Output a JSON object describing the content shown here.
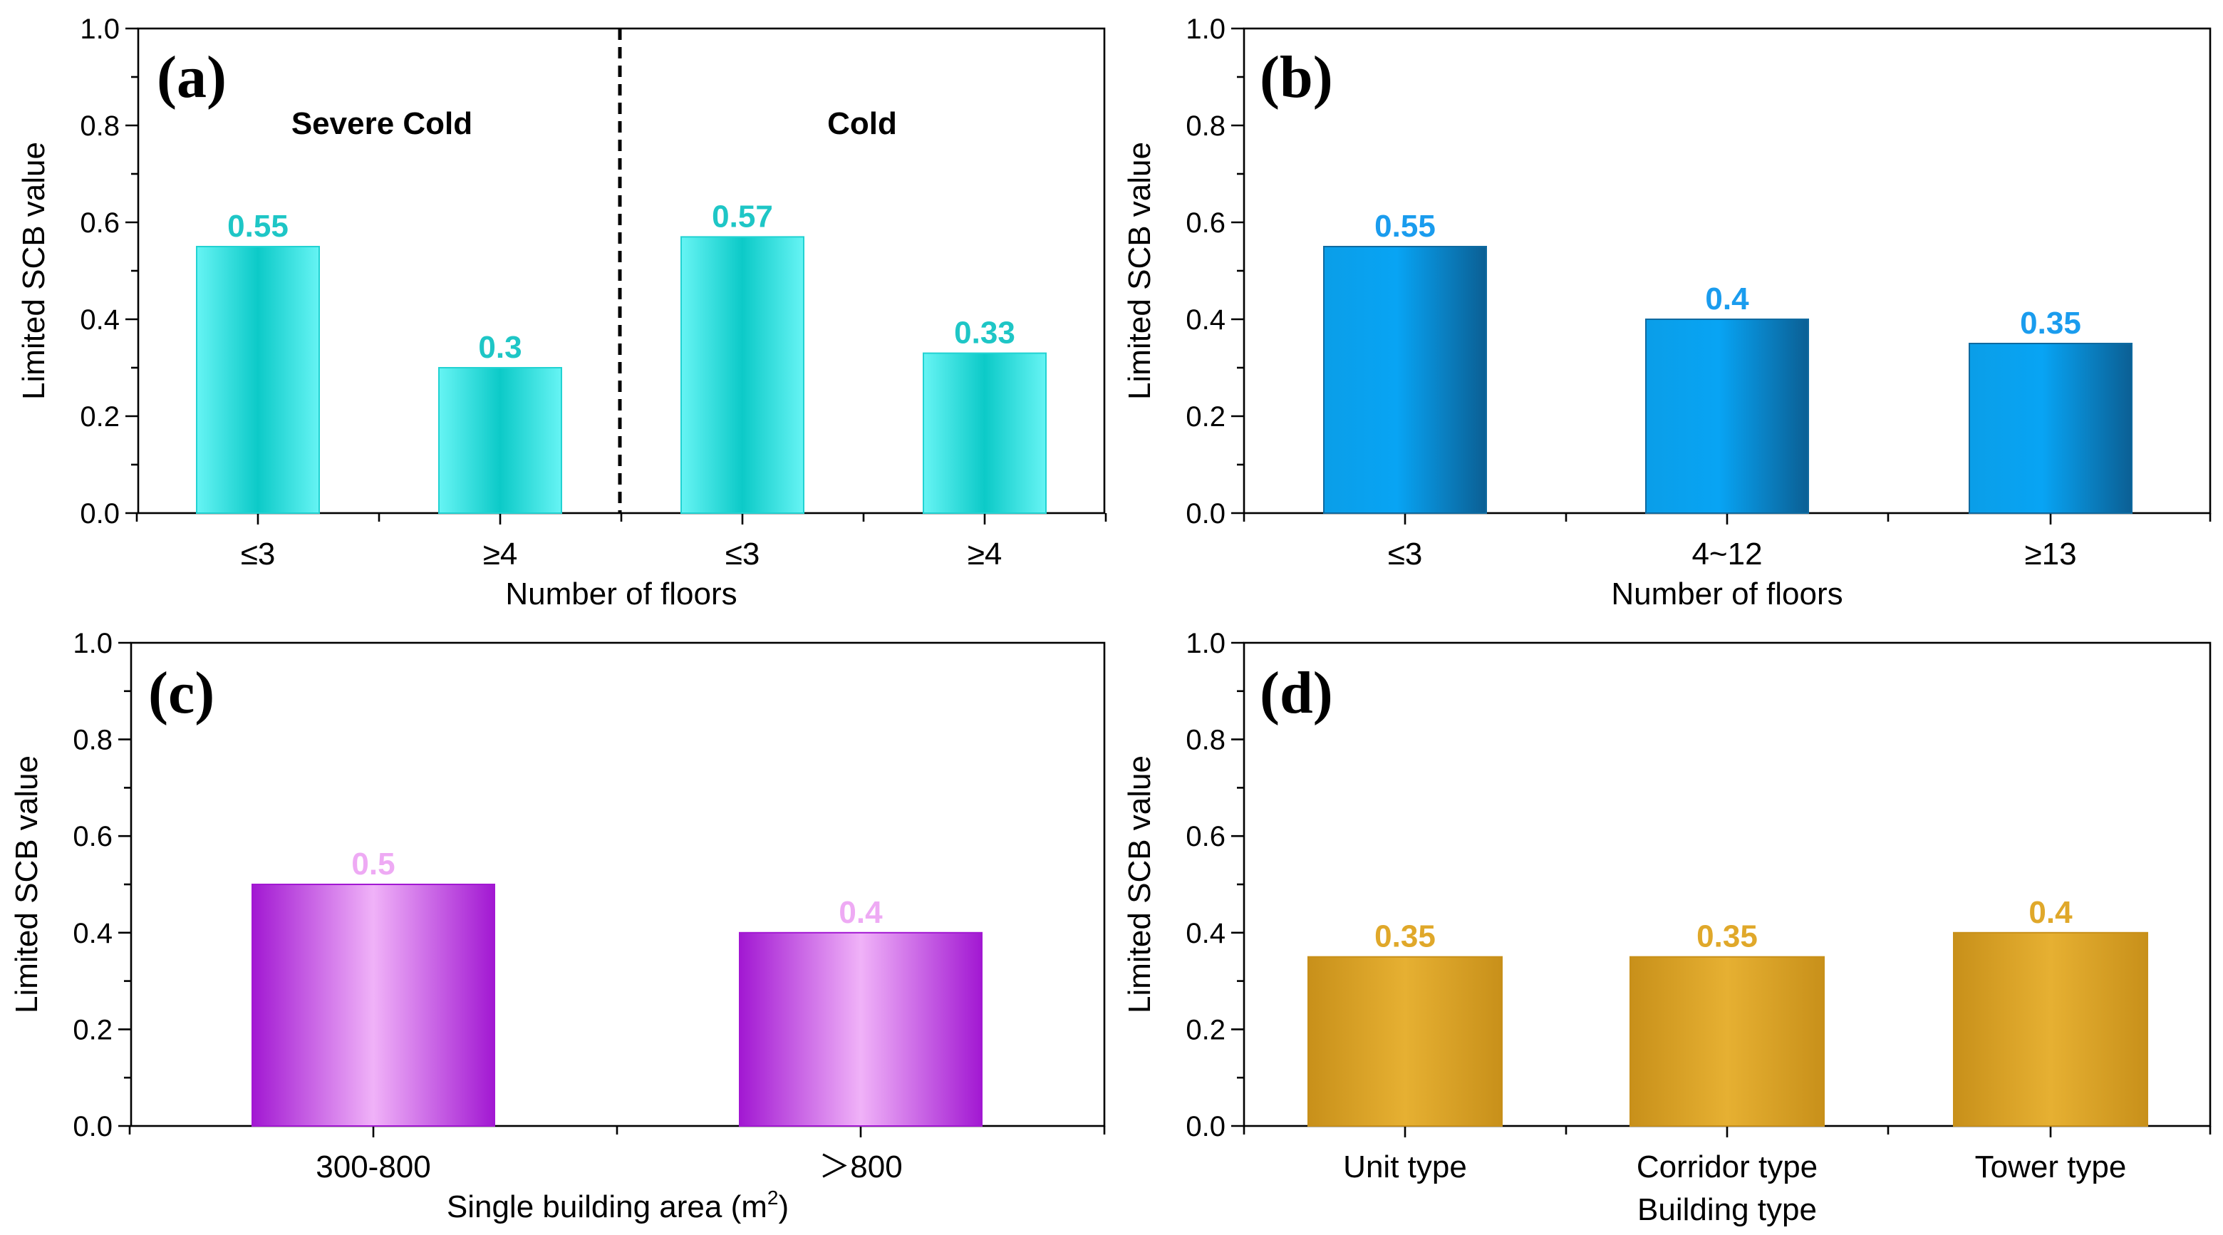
{
  "chart_data": [
    {
      "type": "bar",
      "panel_label": "(a)",
      "categories": [
        "≤3",
        "≥4",
        "≤3",
        "≥4"
      ],
      "values": [
        0.55,
        0.3,
        0.57,
        0.33
      ],
      "data_labels": [
        "0.55",
        "0.3",
        "0.57",
        "0.33"
      ],
      "xlabel": "Number of floors",
      "ylabel": "Limited SCB value",
      "ylim": [
        0,
        1
      ],
      "yticks": [
        "0.0",
        "0.2",
        "0.4",
        "0.6",
        "0.8",
        "1.0"
      ],
      "groups": [
        "Severe Cold",
        "Cold"
      ],
      "colors": {
        "edge": "#66f4f4",
        "center": "#0ccac8",
        "label": "#1ec6c6",
        "stroke": "#22d2d2"
      }
    },
    {
      "type": "bar",
      "panel_label": "(b)",
      "categories": [
        "≤3",
        "4~12",
        "≥13"
      ],
      "values": [
        0.55,
        0.4,
        0.35
      ],
      "data_labels": [
        "0.55",
        "0.4",
        "0.35"
      ],
      "xlabel": "Number of floors",
      "ylabel": "Limited SCB value",
      "ylim": [
        0,
        1
      ],
      "yticks": [
        "0.0",
        "0.2",
        "0.4",
        "0.6",
        "0.8",
        "1.0"
      ],
      "colors": {
        "edge": "#0a6aa6",
        "center": "#05a2f2",
        "label": "#1a9cee",
        "stroke": "#0f6aa0"
      }
    },
    {
      "type": "bar",
      "panel_label": "(c)",
      "categories": [
        "300-800",
        "＞800"
      ],
      "values": [
        0.5,
        0.4
      ],
      "data_labels": [
        "0.5",
        "0.4"
      ],
      "xlabel": "Single building area (m",
      "xlabel_sup": "2",
      "xlabel_end": ")",
      "ylabel": "Limited SCB value",
      "ylim": [
        0,
        1
      ],
      "yticks": [
        "0.0",
        "0.2",
        "0.4",
        "0.6",
        "0.8",
        "1.0"
      ],
      "colors": {
        "edge": "#a218d2",
        "center": "#f0b2f8",
        "label": "#eeaaf4",
        "stroke": "#a218d2"
      }
    },
    {
      "type": "bar",
      "panel_label": "(d)",
      "categories": [
        "Unit type",
        "Corridor type",
        "Tower type"
      ],
      "values": [
        0.35,
        0.35,
        0.4
      ],
      "data_labels": [
        "0.35",
        "0.35",
        "0.4"
      ],
      "xlabel": "Building type",
      "ylabel": "Limited SCB value",
      "ylim": [
        0,
        1
      ],
      "yticks": [
        "0.0",
        "0.2",
        "0.4",
        "0.6",
        "0.8",
        "1.0"
      ],
      "colors": {
        "edge": "#c8901a",
        "center": "#e6b032",
        "label": "#e0a82a",
        "stroke": "#c8901a"
      }
    }
  ]
}
